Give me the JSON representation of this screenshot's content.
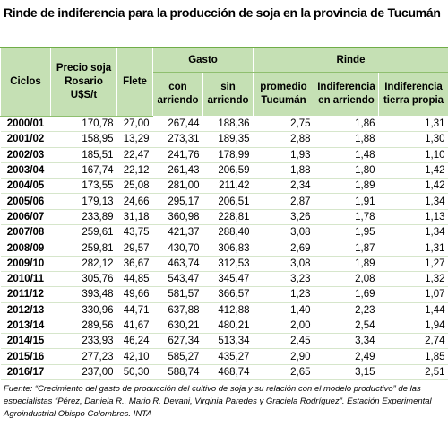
{
  "title": "Rinde de indiferencia para la producción de soja en la provincia de Tucumán",
  "table": {
    "group_headers": [
      "Gasto",
      "Rinde"
    ],
    "column_headers": [
      "Ciclos",
      "Precio soja Rosario U$S/t",
      "Flete",
      "con arriendo",
      "sin arriendo",
      "promedio Tucumán",
      "Indiferencia en arriendo",
      "Indiferencia tierra propia"
    ],
    "rows": [
      [
        "2000/01",
        "170,78",
        "27,00",
        "267,44",
        "188,36",
        "2,75",
        "1,86",
        "1,31"
      ],
      [
        "2001/02",
        "158,95",
        "13,29",
        "273,31",
        "189,35",
        "2,88",
        "1,88",
        "1,30"
      ],
      [
        "2002/03",
        "185,51",
        "22,47",
        "241,76",
        "178,99",
        "1,93",
        "1,48",
        "1,10"
      ],
      [
        "2003/04",
        "167,74",
        "22,12",
        "261,43",
        "206,59",
        "1,88",
        "1,80",
        "1,42"
      ],
      [
        "2004/05",
        "173,55",
        "25,08",
        "281,00",
        "211,42",
        "2,34",
        "1,89",
        "1,42"
      ],
      [
        "2005/06",
        "179,13",
        "24,66",
        "295,17",
        "206,51",
        "2,87",
        "1,91",
        "1,34"
      ],
      [
        "2006/07",
        "233,89",
        "31,18",
        "360,98",
        "228,81",
        "3,26",
        "1,78",
        "1,13"
      ],
      [
        "2007/08",
        "259,61",
        "43,75",
        "421,37",
        "288,40",
        "3,08",
        "1,95",
        "1,34"
      ],
      [
        "2008/09",
        "259,81",
        "29,57",
        "430,70",
        "306,83",
        "2,69",
        "1,87",
        "1,31"
      ],
      [
        "2009/10",
        "282,12",
        "36,67",
        "463,74",
        "312,53",
        "3,08",
        "1,89",
        "1,27"
      ],
      [
        "2010/11",
        "305,76",
        "44,85",
        "543,47",
        "345,47",
        "3,23",
        "2,08",
        "1,32"
      ],
      [
        "2011/12",
        "393,48",
        "49,66",
        "581,57",
        "366,57",
        "1,23",
        "1,69",
        "1,07"
      ],
      [
        "2012/13",
        "330,96",
        "44,71",
        "637,88",
        "412,88",
        "1,40",
        "2,23",
        "1,44"
      ],
      [
        "2013/14",
        "289,56",
        "41,67",
        "630,21",
        "480,21",
        "2,00",
        "2,54",
        "1,94"
      ],
      [
        "2014/15",
        "233,93",
        "46,24",
        "627,34",
        "513,34",
        "2,45",
        "3,34",
        "2,74"
      ],
      [
        "2015/16",
        "277,23",
        "42,10",
        "585,27",
        "435,27",
        "2,90",
        "2,49",
        "1,85"
      ],
      [
        "2016/17",
        "237,00",
        "50,30",
        "588,74",
        "468,74",
        "2,65",
        "3,15",
        "2,51"
      ]
    ]
  },
  "source": "Fuente: “Crecimiento del gasto de producción del cultivo de soja y su relación con el modelo productivo” de las especialistas “Pérez, Daniela R., Mario R. Devani, Virginia Paredes y Graciela Rodríguez”. Estación Experimental Agroindustrial Obispo Colombres. INTA"
}
